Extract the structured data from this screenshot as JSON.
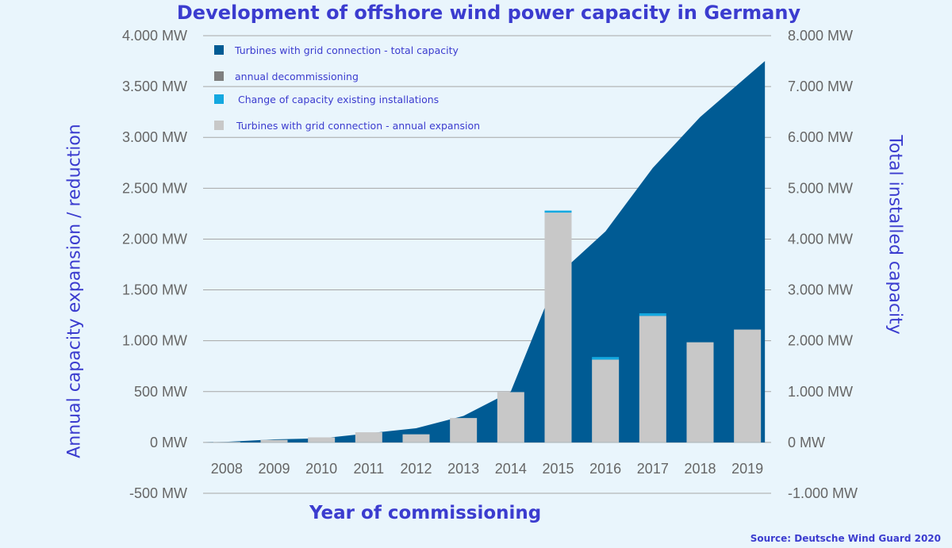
{
  "chart_data": {
    "type": "bar",
    "title": "Development of offshore wind power capacity in Germany",
    "xlabel": "Year of commissioning",
    "ylabel_left": "Annual capacity expansion / reduction",
    "ylabel_right": "Total installed capacity",
    "source": "Source: Deutsche Wind Guard 2020",
    "categories": [
      "2008",
      "2009",
      "2010",
      "2011",
      "2012",
      "2013",
      "2014",
      "2015",
      "2016",
      "2017",
      "2018",
      "2019"
    ],
    "y_left": {
      "min": -500,
      "max": 4000,
      "step": 500,
      "ticks": [
        "-500 MW",
        "0 MW",
        "500 MW",
        "1.000 MW",
        "1.500 MW",
        "2.000 MW",
        "2.500 MW",
        "3.000 MW",
        "3.500 MW",
        "4.000 MW"
      ]
    },
    "y_right": {
      "min": -1000,
      "max": 8000,
      "step": 1000,
      "ticks": [
        "-1.000 MW",
        "0 MW",
        "1.000 MW",
        "2.000 MW",
        "3.000 MW",
        "4.000 MW",
        "5.000 MW",
        "6.000 MW",
        "7.000 MW",
        "8.000 MW"
      ]
    },
    "series": [
      {
        "name": "Turbines with grid connection - total capacity",
        "axis": "right",
        "type": "area",
        "color": "#005b94",
        "values": [
          12,
          60,
          80,
          180,
          280,
          520,
          1000,
          3300,
          4150,
          5400,
          6400,
          7500
        ]
      },
      {
        "name": "annual decommissioning",
        "axis": "left",
        "type": "bar",
        "color": "#7f7f7f",
        "values": [
          0,
          0,
          0,
          0,
          0,
          0,
          0,
          0,
          0,
          0,
          0,
          0
        ]
      },
      {
        "name": "Change of capacity existing installations",
        "axis": "left",
        "type": "bar",
        "color": "#14a8e0",
        "values": [
          0,
          0,
          0,
          0,
          0,
          0,
          0,
          20,
          25,
          25,
          0,
          0
        ]
      },
      {
        "name": "Turbines with grid connection - annual expansion",
        "axis": "left",
        "type": "bar",
        "color": "#c8c8c8",
        "values": [
          5,
          25,
          50,
          100,
          80,
          240,
          495,
          2260,
          815,
          1245,
          985,
          1110
        ]
      }
    ],
    "grid": true,
    "legend_position": "top-left"
  }
}
